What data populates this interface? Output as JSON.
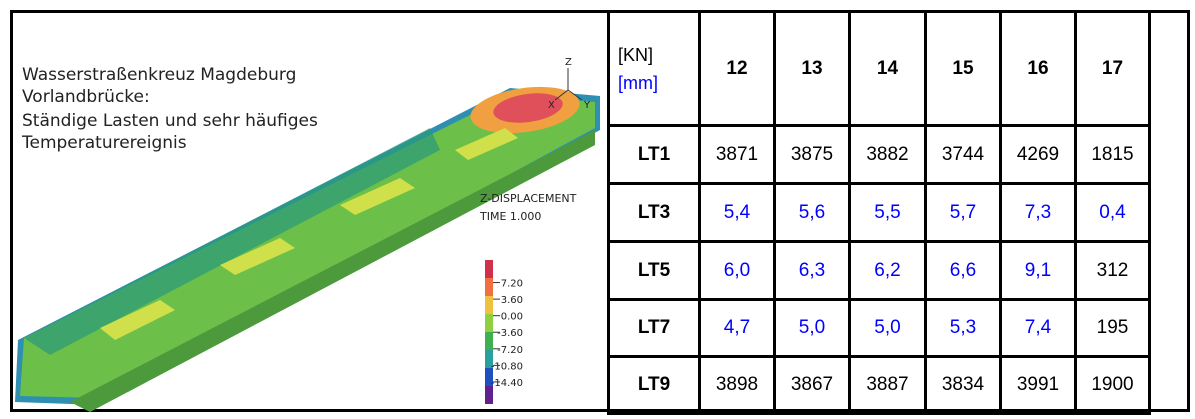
{
  "image": {
    "title_lines": [
      "Wasserstraßenkreuz Magdeburg",
      "Vorlandbrücke:",
      "Ständige Lasten und sehr häufiges",
      "Temperaturereignis"
    ],
    "axes": [
      "Z",
      "X",
      "Y"
    ],
    "result_name": "Z-DISPLACEMENT",
    "time": "TIME 1.000",
    "legend": [
      "7.20",
      "3.60",
      "0.00",
      "-3.60",
      "-7.20",
      "-10.80",
      "-14.40"
    ]
  },
  "table": {
    "corner": [
      {
        "text": "[KN]",
        "color": "#000000"
      },
      {
        "text": "[mm]",
        "color": "#0000ff"
      }
    ],
    "columns": [
      "12",
      "13",
      "14",
      "15",
      "16",
      "17"
    ],
    "rows": [
      {
        "label": "LT1",
        "cells": [
          "3871",
          "3875",
          "3882",
          "3744",
          "4269",
          "1815"
        ],
        "colors": [
          "#000000",
          "#000000",
          "#000000",
          "#000000",
          "#000000",
          "#000000"
        ]
      },
      {
        "label": "LT3",
        "cells": [
          "5,4",
          "5,6",
          "5,5",
          "5,7",
          "7,3",
          "0,4"
        ],
        "colors": [
          "#0000ff",
          "#0000ff",
          "#0000ff",
          "#0000ff",
          "#0000ff",
          "#0000ff"
        ]
      },
      {
        "label": "LT5",
        "cells": [
          "6,0",
          "6,3",
          "6,2",
          "6,6",
          "9,1",
          "312"
        ],
        "colors": [
          "#0000ff",
          "#0000ff",
          "#0000ff",
          "#0000ff",
          "#0000ff",
          "#000000"
        ]
      },
      {
        "label": "LT7",
        "cells": [
          "4,7",
          "5,0",
          "5,0",
          "5,3",
          "7,4",
          "195"
        ],
        "colors": [
          "#0000ff",
          "#0000ff",
          "#0000ff",
          "#0000ff",
          "#0000ff",
          "#000000"
        ]
      },
      {
        "label": "LT9",
        "cells": [
          "3898",
          "3867",
          "3887",
          "3834",
          "3991",
          "1900"
        ],
        "colors": [
          "#000000",
          "#000000",
          "#000000",
          "#000000",
          "#000000",
          "#000000"
        ]
      }
    ]
  }
}
